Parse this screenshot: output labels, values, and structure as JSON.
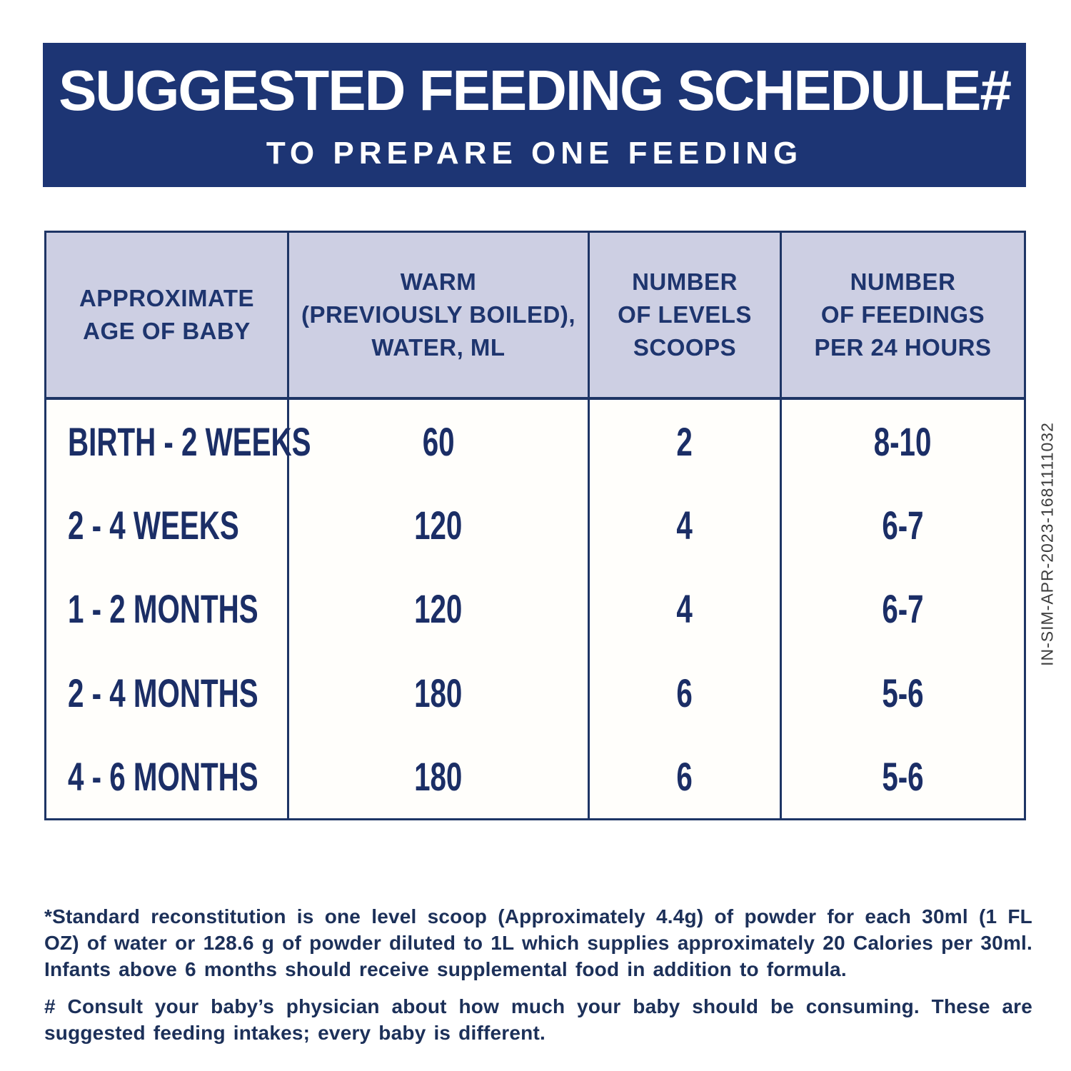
{
  "banner": {
    "title": "SUGGESTED FEEDING SCHEDULE#",
    "subtitle": "TO PREPARE ONE FEEDING",
    "bg_color": "#1d3574",
    "text_color": "#ffffff"
  },
  "table": {
    "headers": [
      "APPROXIMATE\nAGE OF BABY",
      "WARM\n(PREVIOUSLY BOILED),\nWATER, ML",
      "NUMBER\nOF LEVELS\nSCOOPS",
      "NUMBER\nOF FEEDINGS\nPER 24 HOURS"
    ],
    "rows": [
      {
        "age": "BIRTH - 2 WEEKS",
        "water_ml": "60",
        "scoops": "2",
        "feedings": "8-10"
      },
      {
        "age": "2 - 4 WEEKS",
        "water_ml": "120",
        "scoops": "4",
        "feedings": "6-7"
      },
      {
        "age": "1 - 2 MONTHS",
        "water_ml": "120",
        "scoops": "4",
        "feedings": "6-7"
      },
      {
        "age": "2 - 4 MONTHS",
        "water_ml": "180",
        "scoops": "6",
        "feedings": "5-6"
      },
      {
        "age": "4 - 6 MONTHS",
        "water_ml": "180",
        "scoops": "6",
        "feedings": "5-6"
      }
    ],
    "header_bg_color": "#cdcfe3",
    "border_color": "#1e3565",
    "text_color": "#1b2e66"
  },
  "chart_data": {
    "type": "table",
    "title": "SUGGESTED FEEDING SCHEDULE# TO PREPARE ONE FEEDING",
    "columns": [
      "APPROXIMATE AGE OF BABY",
      "WARM (PREVIOUSLY BOILED), WATER, ML",
      "NUMBER OF LEVELS SCOOPS",
      "NUMBER OF FEEDINGS PER 24 HOURS"
    ],
    "rows": [
      [
        "BIRTH - 2 WEEKS",
        60,
        2,
        "8-10"
      ],
      [
        "2 - 4 WEEKS",
        120,
        4,
        "6-7"
      ],
      [
        "1 - 2 MONTHS",
        120,
        4,
        "6-7"
      ],
      [
        "2 - 4 MONTHS",
        180,
        6,
        "5-6"
      ],
      [
        "4 - 6 MONTHS",
        180,
        6,
        "5-6"
      ]
    ]
  },
  "footnotes": {
    "standard": "*Standard reconstitution is one level scoop (Approximately 4.4g) of powder for each 30ml (1 FL OZ) of water or 128.6 g of powder diluted to 1L which supplies approximately 20 Calories per 30ml. Infants above 6 months should receive supplemental food in addition to formula.",
    "consult": "# Consult your baby’s physician about how much your baby should be consuming. These are suggested feeding intakes; every baby is different."
  },
  "side_code": "IN-SIM-APR-2023-1681111032"
}
